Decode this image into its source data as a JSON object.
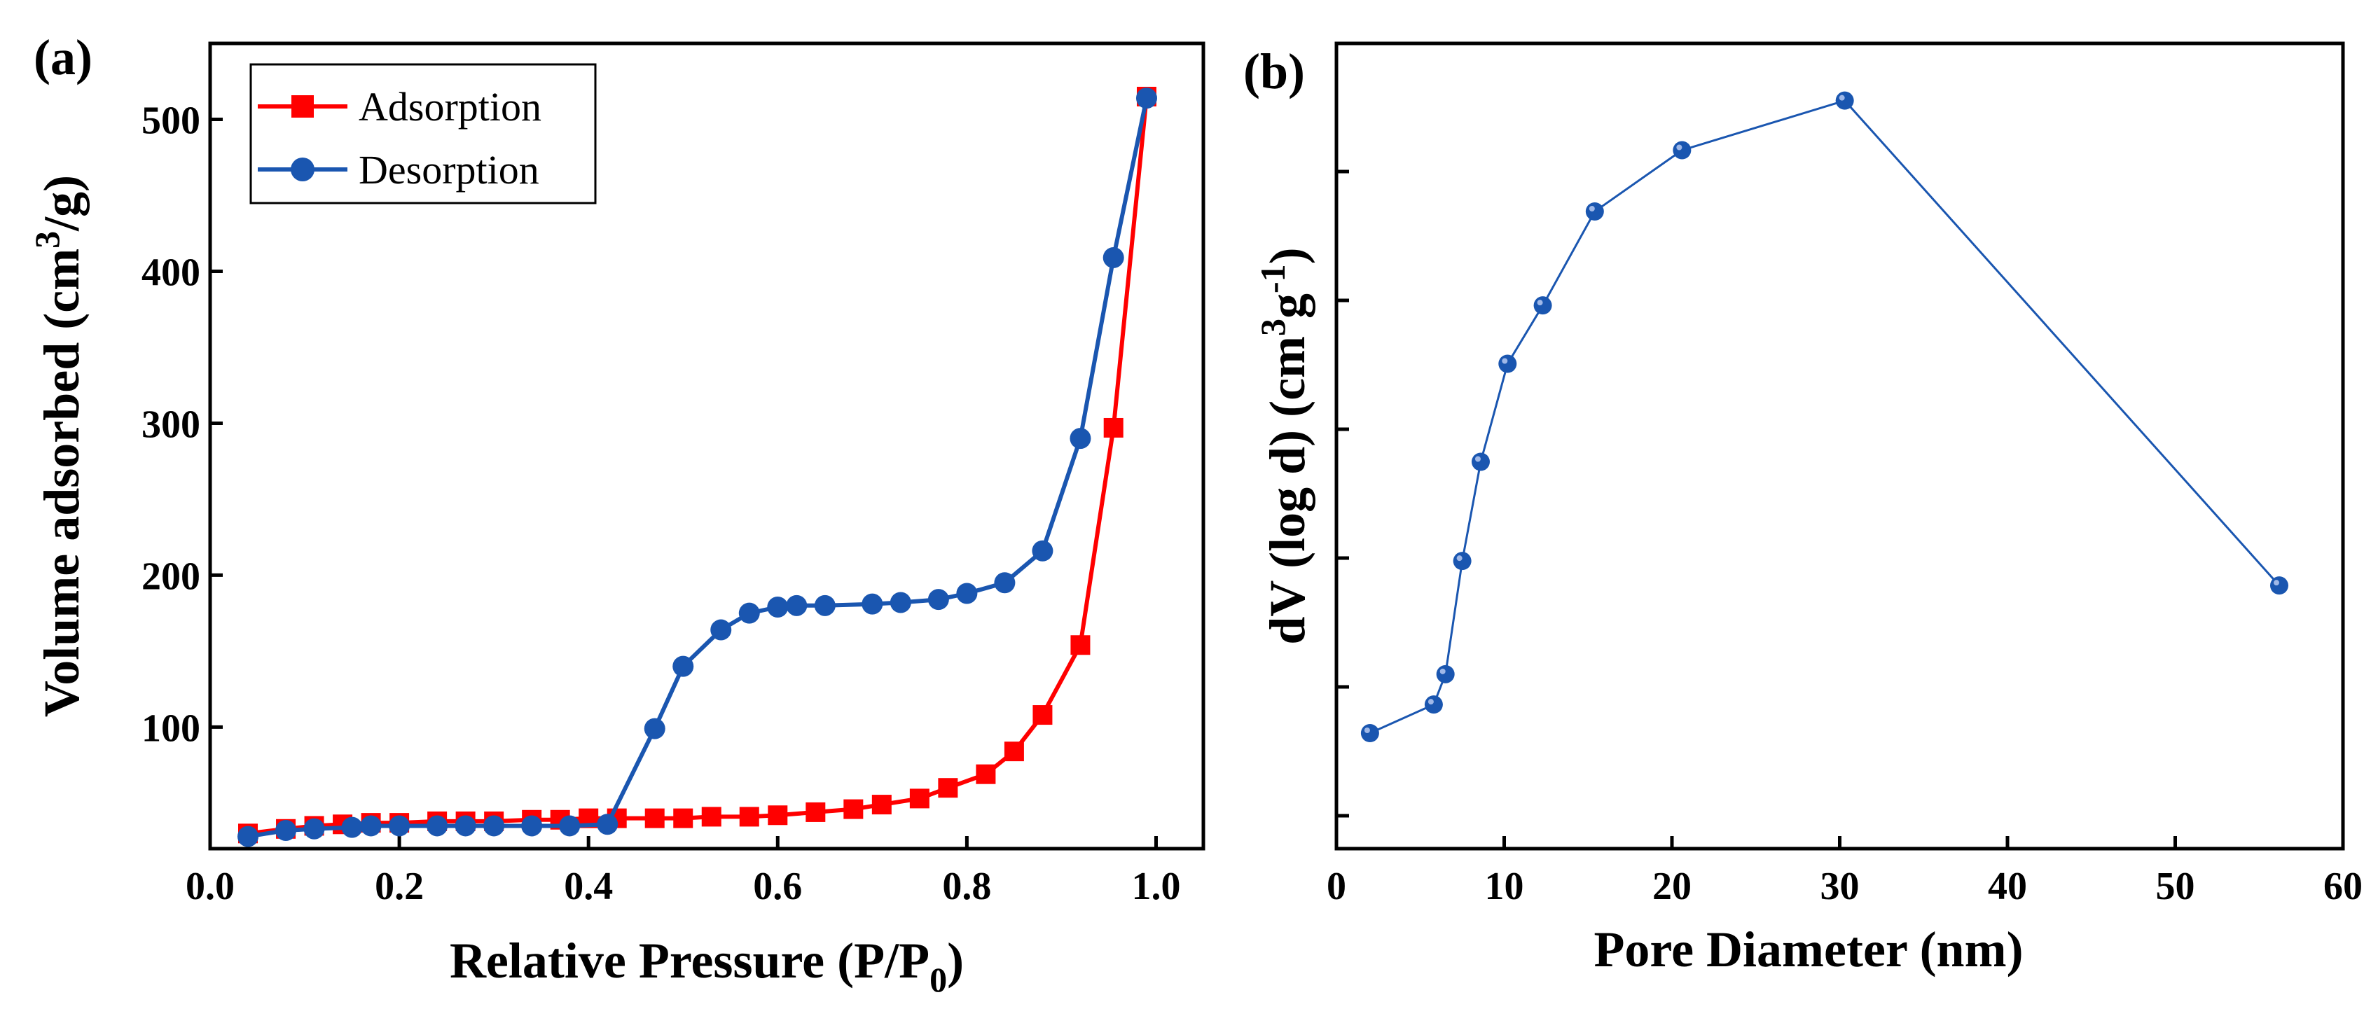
{
  "chart_data": [
    {
      "panel": "(a)",
      "type": "line",
      "title": "",
      "xlabel": "Relative Pressure (P/P",
      "xlabel_sub": "0",
      "xlabel_end": ")",
      "ylabel": "Volume adsorbed (cm",
      "ylabel_sup": "3",
      "ylabel_end": "/g)",
      "xlim": [
        0.0,
        1.05
      ],
      "ylim": [
        20,
        550
      ],
      "xticks": [
        "0.0",
        "0.2",
        "0.4",
        "0.6",
        "0.8",
        "1.0"
      ],
      "yticks": [
        "100",
        "200",
        "300",
        "400",
        "500"
      ],
      "legend_position": "top-left",
      "grid": false,
      "series": [
        {
          "name": "Adsorption",
          "color": "#ff0000",
          "marker": "square",
          "x": [
            0.04,
            0.08,
            0.11,
            0.14,
            0.17,
            0.2,
            0.24,
            0.27,
            0.3,
            0.34,
            0.37,
            0.4,
            0.43,
            0.47,
            0.5,
            0.53,
            0.57,
            0.6,
            0.64,
            0.68,
            0.71,
            0.75,
            0.78,
            0.82,
            0.85,
            0.88,
            0.92,
            0.955,
            0.99
          ],
          "y": [
            30,
            33,
            35,
            36,
            37,
            37,
            38,
            38,
            38,
            39,
            39,
            40,
            40,
            40,
            40,
            41,
            41,
            42,
            44,
            46,
            49,
            53,
            60,
            69,
            84,
            108,
            154,
            297,
            515
          ]
        },
        {
          "name": "Desorption",
          "color": "#1a56b0",
          "marker": "circle",
          "x": [
            0.04,
            0.08,
            0.11,
            0.15,
            0.17,
            0.2,
            0.24,
            0.27,
            0.3,
            0.34,
            0.38,
            0.42,
            0.47,
            0.5,
            0.54,
            0.57,
            0.6,
            0.62,
            0.65,
            0.7,
            0.73,
            0.77,
            0.8,
            0.84,
            0.88,
            0.92,
            0.955,
            0.99
          ],
          "y": [
            28,
            32,
            33,
            34,
            35,
            35,
            35,
            35,
            35,
            35,
            35,
            36,
            99,
            140,
            164,
            175,
            179,
            180,
            180,
            181,
            182,
            184,
            188,
            195,
            216,
            290,
            409,
            514
          ]
        }
      ]
    },
    {
      "panel": "(b)",
      "type": "line",
      "title": "",
      "xlabel": "Pore Diameter (nm)",
      "ylabel": "dV (log d) (cm",
      "ylabel_sup1": "3",
      "ylabel_mid": "g",
      "ylabel_sup2": "-1",
      "ylabel_end": ")",
      "xlim": [
        0,
        60
      ],
      "ylim": [
        0,
        1
      ],
      "xticks": [
        "0",
        "10",
        "20",
        "30",
        "40",
        "50",
        "60"
      ],
      "yticks_count": 6,
      "y_tick_labels_shown": false,
      "grid": false,
      "series": [
        {
          "name": "",
          "color": "#1a56b0",
          "marker": "circle",
          "x": [
            2.0,
            5.8,
            6.5,
            7.5,
            8.6,
            10.2,
            12.3,
            15.4,
            20.6,
            30.3,
            56.2
          ],
          "y": [
            0.118,
            0.167,
            0.219,
            0.413,
            0.583,
            0.751,
            0.851,
            1.012,
            1.117,
            1.202,
            0.371
          ]
        }
      ]
    }
  ]
}
